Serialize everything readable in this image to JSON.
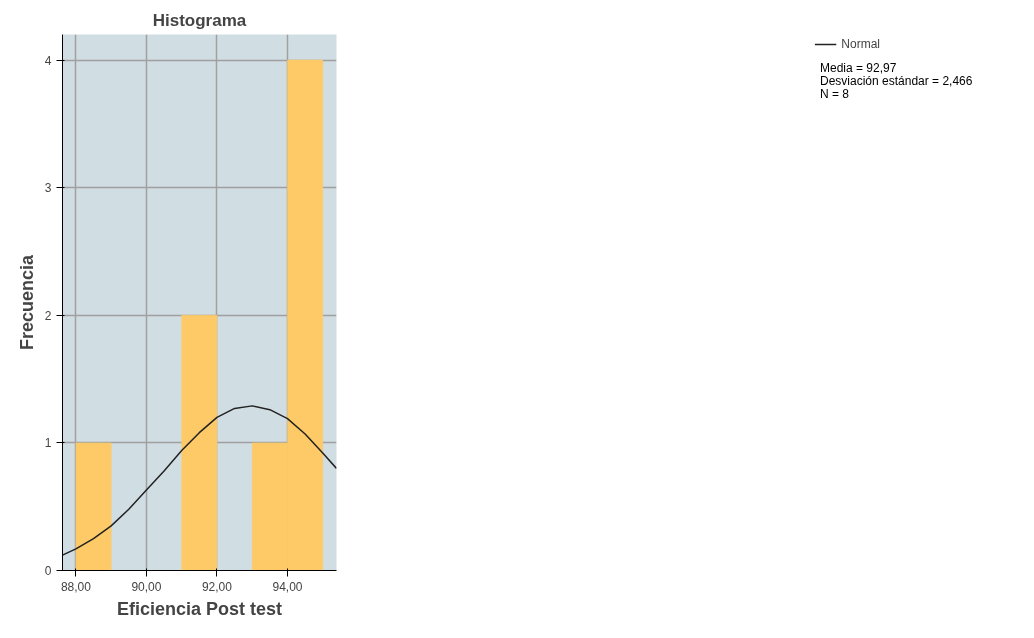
{
  "chart_data": {
    "type": "histogram",
    "title": "Histograma",
    "xlabel": "Eficiencia Post test",
    "ylabel": "Frecuencia",
    "bins": [
      88,
      89,
      90,
      91,
      92,
      93,
      94,
      95
    ],
    "values": [
      1,
      0,
      0,
      2,
      0,
      1,
      4
    ],
    "color": "#fdca67",
    "series": [
      {
        "name": "Normal",
        "type": "line",
        "color": "#222222",
        "x": [
          87.62,
          88,
          88.5,
          89,
          89.5,
          90,
          90.5,
          91,
          91.5,
          92,
          92.5,
          93,
          93.5,
          94,
          94.5,
          95,
          95.39
        ],
        "values": [
          0.12,
          0.17,
          0.25,
          0.35,
          0.48,
          0.63,
          0.78,
          0.94,
          1.08,
          1.2,
          1.27,
          1.29,
          1.26,
          1.19,
          1.07,
          0.92,
          0.8
        ]
      }
    ],
    "xlim": [
      87.62,
      95.39
    ],
    "ylim": [
      0,
      4.2
    ],
    "xticks": [
      {
        "value": 88,
        "label": "88,00"
      },
      {
        "value": 90,
        "label": "90,00"
      },
      {
        "value": 92,
        "label": "92,00"
      },
      {
        "value": 94,
        "label": "94,00"
      }
    ],
    "yticks": [
      0,
      1,
      2,
      3,
      4
    ],
    "grid": true,
    "legend": "top right",
    "annotations": [
      "Media = 92,97",
      "Desviación estándar = 2,466",
      "N = 8"
    ]
  }
}
